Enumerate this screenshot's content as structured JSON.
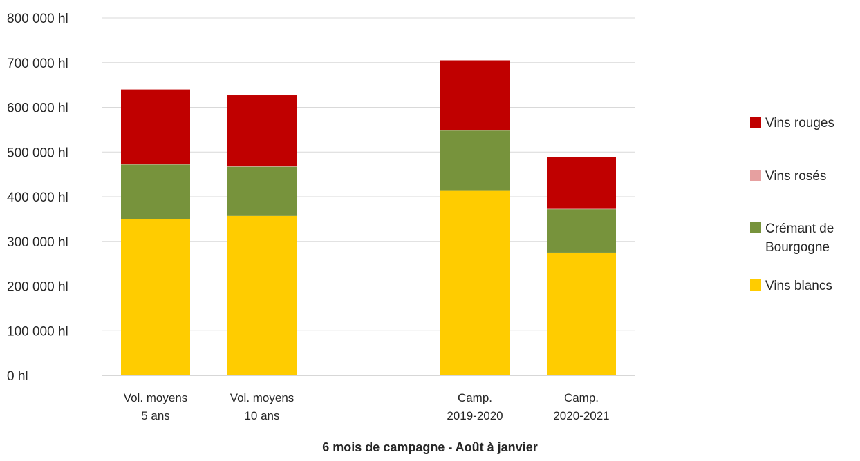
{
  "chart_data": {
    "type": "bar",
    "stacked": true,
    "xlabel": "6 mois de campagne - Août à janvier",
    "ylabel": "",
    "ylim": [
      0,
      800000
    ],
    "unit": "hl",
    "y_ticks": [
      "0 hl",
      "100 000 hl",
      "200 000 hl",
      "300 000 hl",
      "400 000 hl",
      "500 000 hl",
      "600 000 hl",
      "700 000 hl",
      "800 000 hl"
    ],
    "grid": true,
    "legend_position": "right",
    "categories": [
      [
        "Vol. moyens",
        "5 ans"
      ],
      [
        "Vol. moyens",
        "10 ans"
      ],
      [
        "Camp.",
        "2019-2020"
      ],
      [
        "Camp.",
        "2020-2021"
      ]
    ],
    "series": [
      {
        "name": "Vins blancs",
        "color": "#FFCC00",
        "values": [
          350000,
          357000,
          413000,
          275000
        ]
      },
      {
        "name": "Crémant de Bourgogne",
        "color": "#77933C",
        "values": [
          122000,
          110000,
          135000,
          97000
        ]
      },
      {
        "name": "Vins rosés",
        "color": "#E6A0A0",
        "values": [
          1000,
          1000,
          1000,
          1000
        ]
      },
      {
        "name": "Vins rouges",
        "color": "#C00000",
        "values": [
          167000,
          159000,
          156000,
          116000
        ]
      }
    ],
    "legend": [
      {
        "label": [
          "Vins rouges"
        ],
        "color": "#C00000"
      },
      {
        "label": [
          "Vins rosés"
        ],
        "color": "#E6A0A0"
      },
      {
        "label": [
          "Crémant de",
          "Bourgogne"
        ],
        "color": "#77933C"
      },
      {
        "label": [
          "Vins blancs"
        ],
        "color": "#FFCC00"
      }
    ]
  }
}
